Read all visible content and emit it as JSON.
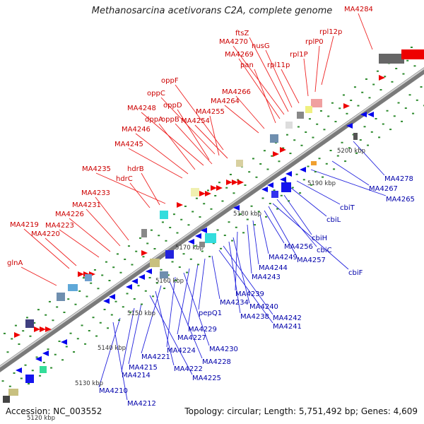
{
  "title": "Methanosarcina acetivorans C2A, complete genome",
  "footer": {
    "accession": "Accession: NC_003552",
    "stats": "Topology: circular; Length: 5,751,492 bp; Genes: 4,609"
  },
  "colors": {
    "upper_label": "#cc0000",
    "lower_label": "#0000aa",
    "forward_gene": "#ee0000",
    "reverse_gene": "#0000ee",
    "ruler": "#9a9a9a",
    "tick_dot": "#2c8a2c"
  },
  "ruler_ticks": [
    {
      "label": "5120 kbp"
    },
    {
      "label": "5130 kbp"
    },
    {
      "label": "5140 kbp"
    },
    {
      "label": "5150 kbp"
    },
    {
      "label": "5160 kbp"
    },
    {
      "label": "5170 kbp"
    },
    {
      "label": "5180 kbp"
    },
    {
      "label": "5190 kbp"
    },
    {
      "label": "5200 kbp"
    }
  ],
  "upper_labels": [
    "MA4284",
    "rpl12p",
    "rplP0",
    "rpl1P",
    "rpl11p",
    "nusG",
    "ftsZ",
    "MA4270",
    "MA4269",
    "pan",
    "MA4266",
    "MA4264",
    "oppF",
    "oppC",
    "oppD",
    "MA4255",
    "MA4248",
    "dppA",
    "oppB",
    "MA4254",
    "MA4246",
    "MA4245",
    "MA4235",
    "hdrB",
    "hdrC",
    "MA4233",
    "MA4231",
    "MA4226",
    "MA4223",
    "MA4219",
    "MA4220",
    "glnA"
  ],
  "lower_labels": [
    "MA4278",
    "MA4267",
    "MA4265",
    "cbiT",
    "cbiL",
    "cbiH",
    "cbiC",
    "cbiF",
    "MA4257",
    "MA4256",
    "MA4249",
    "MA4244",
    "MA4243",
    "MA4239",
    "MA4240",
    "MA4238",
    "MA4242",
    "MA4241",
    "MA4234",
    "pepQ1",
    "MA4229",
    "MA4227",
    "MA4230",
    "MA4224",
    "MA4228",
    "MA4221",
    "MA4222",
    "MA4225",
    "MA4215",
    "MA4214",
    "MA4210",
    "MA4212"
  ]
}
